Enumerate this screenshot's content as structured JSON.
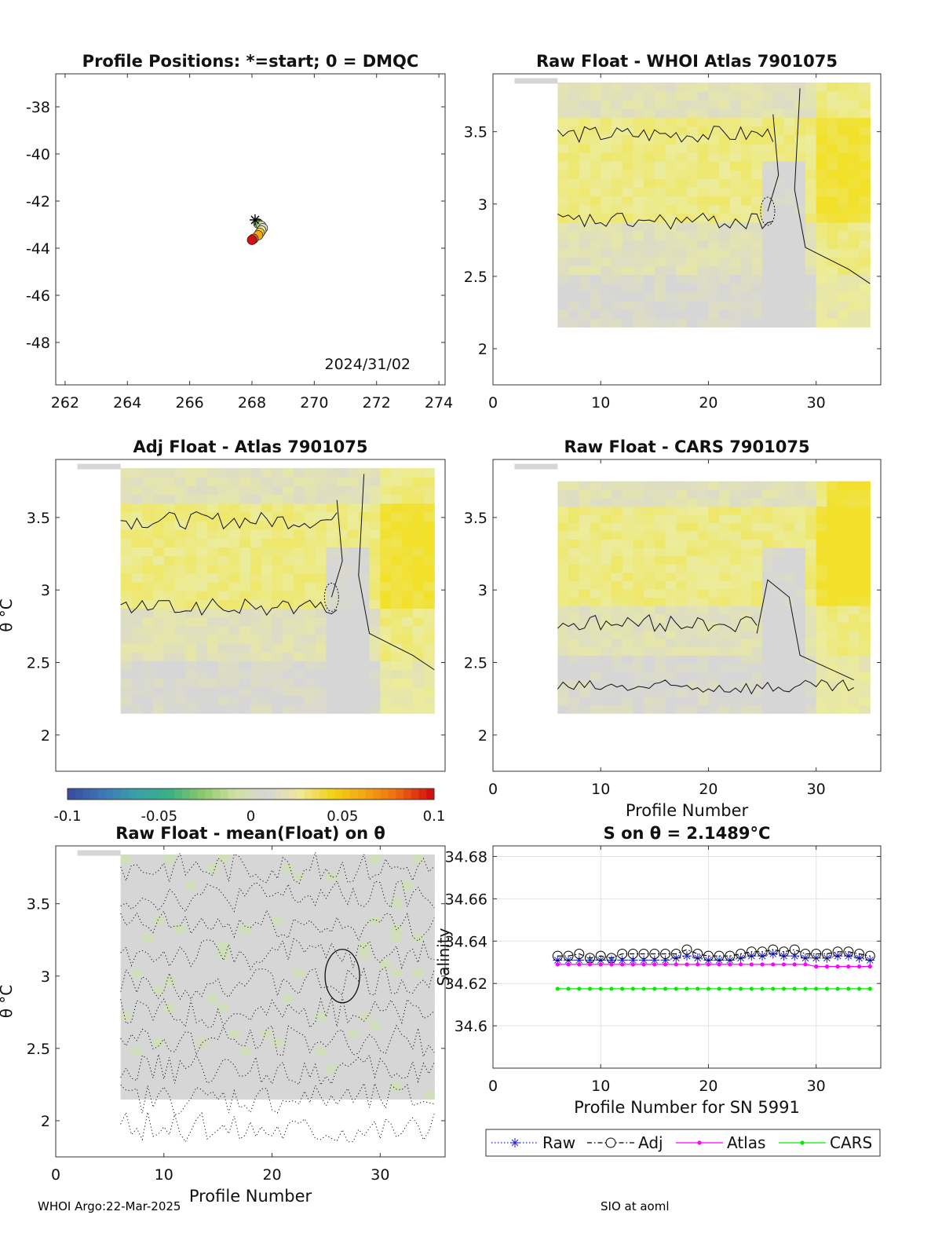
{
  "footer": {
    "left": "WHOI Argo:22-Mar-2025",
    "right": "SIO at aoml"
  },
  "colors": {
    "raw": "#2222cc",
    "adj": "#000000",
    "atlas": "#ff00ff",
    "cars": "#00ee00",
    "field_gray": "#d6d6d6",
    "field_yellow": "#ecec9a",
    "field_yellow_strong": "#f2e02a"
  },
  "colormap": [
    "#3a4ea0",
    "#3d78b8",
    "#3aa0a8",
    "#3ab083",
    "#8ac86a",
    "#cfe0a0",
    "#d6d6d6",
    "#f0e79a",
    "#f2d215",
    "#f4a512",
    "#ef6a10",
    "#d21010"
  ],
  "chart_data": [
    {
      "id": "positions",
      "type": "scatter",
      "title": "Profile Positions: *=start; 0 = DMQC",
      "xlim": [
        261.7,
        274.2
      ],
      "ylim": [
        -49.8,
        -36.6
      ],
      "xticks": [
        262,
        264,
        266,
        268,
        270,
        272,
        274
      ],
      "yticks": [
        -38,
        -40,
        -42,
        -44,
        -46,
        -48
      ],
      "annotation": "2024/31/02",
      "start": {
        "x": 268.1,
        "y": -42.8
      },
      "points": [
        {
          "x": 268.2,
          "y": -42.95,
          "c": 0.0
        },
        {
          "x": 268.3,
          "y": -43.05,
          "c": 0.12
        },
        {
          "x": 268.35,
          "y": -43.15,
          "c": 0.25
        },
        {
          "x": 268.3,
          "y": -43.25,
          "c": 0.4
        },
        {
          "x": 268.25,
          "y": -43.35,
          "c": 0.55
        },
        {
          "x": 268.2,
          "y": -43.45,
          "c": 0.7
        },
        {
          "x": 268.05,
          "y": -43.6,
          "c": 0.85
        },
        {
          "x": 268.0,
          "y": -43.65,
          "c": 1.0
        }
      ]
    },
    {
      "id": "raw_whoi",
      "type": "heatmap",
      "title": "Raw Float - WHOI Atlas  7901075",
      "xlim": [
        0,
        36
      ],
      "ylim": [
        1.75,
        3.9
      ],
      "xticks": [
        0,
        10,
        20,
        30
      ],
      "yticks": [
        2,
        2.5,
        3,
        3.5
      ],
      "xlabel": "",
      "ylabel": ""
    },
    {
      "id": "adj_atlas",
      "type": "heatmap",
      "title": "Adj Float - Atlas  7901075",
      "xlim": [
        0,
        36
      ],
      "ylim": [
        1.75,
        3.9
      ],
      "xticks": [],
      "yticks": [
        2,
        2.5,
        3,
        3.5
      ],
      "xlabel": "",
      "ylabel": "θ °C"
    },
    {
      "id": "raw_cars",
      "type": "heatmap",
      "title": "Raw Float - CARS  7901075",
      "xlim": [
        0,
        36
      ],
      "ylim": [
        1.75,
        3.9
      ],
      "xticks": [
        0,
        10,
        20,
        30
      ],
      "yticks": [
        2,
        2.5,
        3,
        3.5
      ],
      "xlabel": "Profile Number",
      "ylabel": ""
    },
    {
      "id": "colorbar",
      "type": "colorbar",
      "range": [
        -0.1,
        0.1
      ],
      "ticks": [
        "-0.1",
        "-0.05",
        "0",
        "0.05",
        "0.1"
      ]
    },
    {
      "id": "raw_mean",
      "type": "heatmap",
      "title": "Raw Float - mean(Float) on θ",
      "xlim": [
        0,
        36
      ],
      "ylim": [
        1.75,
        3.9
      ],
      "xticks": [
        0,
        10,
        20,
        30
      ],
      "yticks": [
        2,
        2.5,
        3,
        3.5
      ],
      "xlabel": "Profile Number",
      "ylabel": "θ °C"
    },
    {
      "id": "salinity",
      "type": "line",
      "title": "S on θ = 2.1489°C",
      "xlim": [
        0,
        36
      ],
      "ylim": [
        34.58,
        34.685
      ],
      "xticks": [
        0,
        10,
        20,
        30
      ],
      "yticks": [
        34.6,
        34.62,
        34.64,
        34.66,
        34.68
      ],
      "xlabel": "Profile Number for SN 5991",
      "ylabel": "Salinity",
      "grid": true,
      "legend": "bottom-outside",
      "x": [
        6,
        7,
        8,
        9,
        10,
        11,
        12,
        13,
        14,
        15,
        16,
        17,
        18,
        19,
        20,
        21,
        22,
        23,
        24,
        25,
        26,
        27,
        28,
        29,
        30,
        31,
        32,
        33,
        34,
        35
      ],
      "series": [
        {
          "name": "Raw",
          "values": [
            34.631,
            34.631,
            34.631,
            34.631,
            34.631,
            34.631,
            34.631,
            34.631,
            34.631,
            34.631,
            34.631,
            34.632,
            34.633,
            34.632,
            34.631,
            34.631,
            34.631,
            34.632,
            34.633,
            34.633,
            34.634,
            34.633,
            34.633,
            34.632,
            34.632,
            34.632,
            34.633,
            34.633,
            34.632,
            34.631
          ]
        },
        {
          "name": "Adj",
          "values": [
            34.633,
            34.633,
            34.634,
            34.632,
            34.633,
            34.632,
            34.634,
            34.634,
            34.634,
            34.634,
            34.634,
            34.634,
            34.636,
            34.634,
            34.633,
            34.633,
            34.633,
            34.634,
            34.635,
            34.635,
            34.636,
            34.635,
            34.636,
            34.634,
            34.634,
            34.634,
            34.635,
            34.635,
            34.634,
            34.633
          ]
        },
        {
          "name": "Atlas",
          "values": [
            34.629,
            34.629,
            34.629,
            34.629,
            34.629,
            34.629,
            34.629,
            34.629,
            34.629,
            34.629,
            34.629,
            34.629,
            34.629,
            34.629,
            34.629,
            34.629,
            34.629,
            34.629,
            34.629,
            34.629,
            34.629,
            34.629,
            34.629,
            34.629,
            34.628,
            34.628,
            34.628,
            34.628,
            34.628,
            34.628
          ]
        },
        {
          "name": "CARS",
          "values": [
            34.6175,
            34.6175,
            34.6175,
            34.6175,
            34.6175,
            34.6175,
            34.6175,
            34.6175,
            34.6175,
            34.6175,
            34.6175,
            34.6175,
            34.6175,
            34.6175,
            34.6175,
            34.6175,
            34.6175,
            34.6175,
            34.6175,
            34.6175,
            34.6175,
            34.6175,
            34.6175,
            34.6175,
            34.6175,
            34.6175,
            34.6175,
            34.6175,
            34.6175,
            34.6175
          ]
        }
      ]
    }
  ]
}
